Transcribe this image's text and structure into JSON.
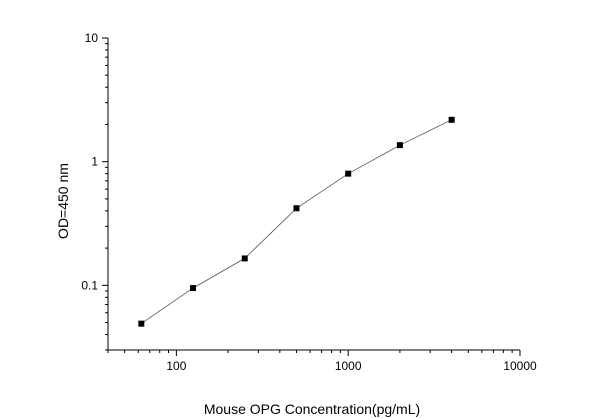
{
  "chart_data": {
    "type": "scatter",
    "title": "",
    "xlabel": "Mouse OPG  Concentration(pg/mL)",
    "ylabel": "OD=450 nm",
    "xscale": "log",
    "yscale": "log",
    "xlim": [
      40,
      10000
    ],
    "ylim": [
      0.03,
      10
    ],
    "grid": false,
    "legend": "none",
    "x_ticks": [
      100,
      1000,
      10000
    ],
    "x_tick_labels": [
      "100",
      "1000",
      "10000"
    ],
    "y_ticks": [
      0.1,
      1,
      10
    ],
    "y_tick_labels": [
      "0.1",
      "1",
      "10"
    ],
    "series": [
      {
        "x": [
          62.5,
          125,
          250,
          500,
          1000,
          2000,
          4000
        ],
        "y": [
          0.049,
          0.095,
          0.165,
          0.42,
          0.8,
          1.36,
          2.18
        ],
        "marker": "square",
        "connect": true,
        "marker_color": "#000000",
        "line_color": "#555555"
      }
    ]
  }
}
